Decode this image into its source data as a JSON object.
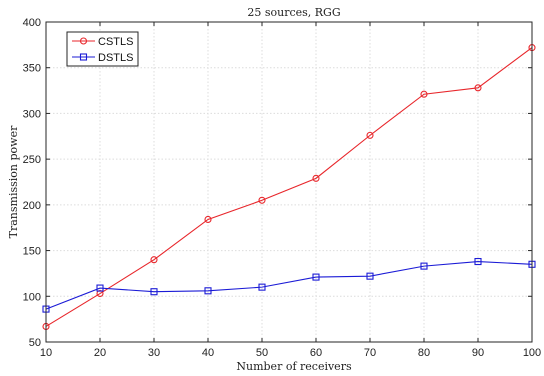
{
  "chart_data": {
    "type": "line",
    "title": "25 sources, RGG",
    "xlabel": "Number of receivers",
    "ylabel": "Transmission power",
    "x": [
      10,
      20,
      30,
      40,
      50,
      60,
      70,
      80,
      90,
      100
    ],
    "xlim": [
      10,
      100
    ],
    "ylim": [
      50,
      400
    ],
    "xticks": [
      "10",
      "20",
      "30",
      "40",
      "50",
      "60",
      "70",
      "80",
      "90",
      "100"
    ],
    "yticks": [
      "50",
      "100",
      "150",
      "200",
      "250",
      "300",
      "350",
      "400"
    ],
    "grid": true,
    "legend_position": "top-left",
    "series": [
      {
        "name": "CSTLS",
        "color": "#e8262b",
        "marker": "circle",
        "values": [
          67,
          103,
          140,
          184,
          205,
          229,
          276,
          321,
          328,
          372
        ]
      },
      {
        "name": "DSTLS",
        "color": "#1b1bd6",
        "marker": "square",
        "values": [
          86,
          109,
          105,
          106,
          110,
          121,
          122,
          133,
          138,
          135
        ]
      }
    ]
  }
}
